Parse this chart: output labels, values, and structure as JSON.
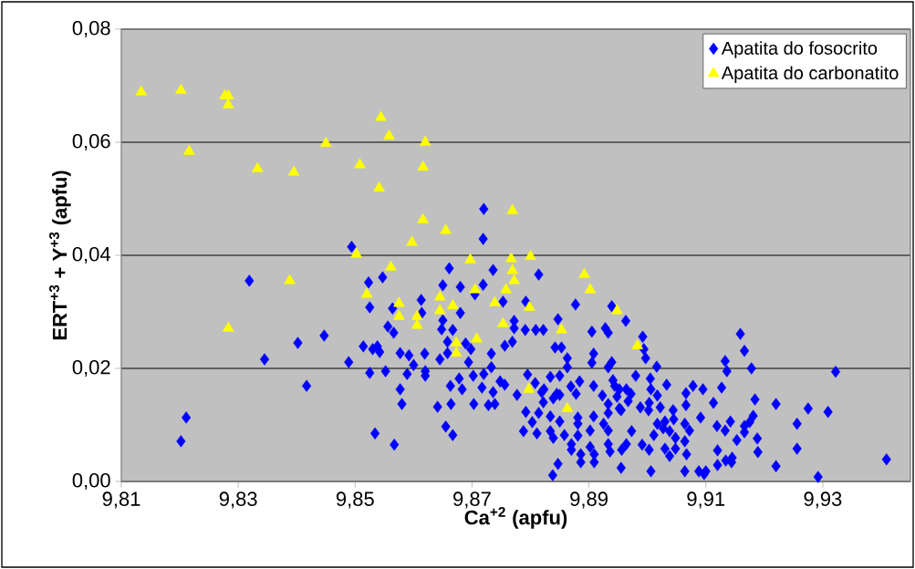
{
  "chart_data": {
    "type": "scatter",
    "xlabel": "Ca$^{+2}$ (apfu)",
    "ylabel": "ERT$^{+3}$ + Y$^{+3}$ (apfu)",
    "xlim": [
      9.81,
      9.945
    ],
    "ylim": [
      0,
      0.08
    ],
    "xticks": [
      {
        "value": 9.81,
        "label": "9,81"
      },
      {
        "value": 9.83,
        "label": "9,83"
      },
      {
        "value": 9.85,
        "label": "9,85"
      },
      {
        "value": 9.87,
        "label": "9,87"
      },
      {
        "value": 9.89,
        "label": "9,89"
      },
      {
        "value": 9.91,
        "label": "9,91"
      },
      {
        "value": 9.93,
        "label": "9,93"
      }
    ],
    "yticks": [
      {
        "value": 0,
        "label": "0,00"
      },
      {
        "value": 0.02,
        "label": "0,02"
      },
      {
        "value": 0.04,
        "label": "0,04"
      },
      {
        "value": 0.06,
        "label": "0,06"
      },
      {
        "value": 0.08,
        "label": "0,08"
      }
    ],
    "grid": "y",
    "legend": "top right",
    "series": [
      {
        "name": "Apatita do fosocrito",
        "color": "#0000ff",
        "marker": "diamond",
        "x": [
          9.8494,
          9.872,
          9.8719,
          9.8319,
          9.8523,
          9.8547,
          9.8525,
          9.8564,
          9.8556,
          9.8447,
          9.8402,
          9.8514,
          9.8538,
          9.853,
          9.8542,
          9.8345,
          9.8489,
          9.8525,
          9.8552,
          9.8417,
          9.8211,
          9.8202,
          9.8534,
          9.8567,
          9.8566,
          9.8661,
          9.8736,
          9.8814,
          9.865,
          9.868,
          9.8719,
          9.8705,
          9.8613,
          9.8753,
          9.8792,
          9.8877,
          9.8939,
          9.8614,
          9.868,
          9.8963,
          9.8772,
          9.8847,
          9.865,
          9.8648,
          9.8667,
          9.8772,
          9.8791,
          9.8809,
          9.8822,
          9.8905,
          9.8928,
          9.8933,
          9.8992,
          9.8658,
          9.8689,
          9.8769,
          9.8756,
          9.8842,
          9.8853,
          9.8698,
          9.8577,
          9.8619,
          9.8658,
          9.8733,
          9.8994,
          9.8592,
          9.8645,
          9.8908,
          9.8863,
          9.8997,
          9.86,
          9.8694,
          9.8733,
          9.8863,
          9.8905,
          9.8939,
          9.9016,
          9.8933,
          9.8589,
          9.862,
          9.862,
          9.872,
          9.8702,
          9.8795,
          9.8834,
          9.885,
          9.898,
          9.9005,
          9.8678,
          9.8663,
          9.8683,
          9.8748,
          9.8756,
          9.8808,
          9.8823,
          9.8884,
          9.8908,
          9.8869,
          9.8941,
          9.8944,
          9.9033,
          9.8577,
          9.8717,
          9.8736,
          9.8777,
          9.8819,
          9.8845,
          9.8878,
          9.8923,
          9.8952,
          9.8964,
          9.8948,
          9.8972,
          9.9006,
          9.9017,
          9.858,
          9.8641,
          9.8664,
          9.8703,
          9.8728,
          9.8739,
          9.8822,
          9.8839,
          9.885,
          9.8933,
          9.8952,
          9.8967,
          9.8988,
          9.9003,
          9.9022,
          9.8792,
          9.8814,
          9.8834,
          9.8881,
          9.8908,
          9.8933,
          9.8955,
          9.9002,
          9.8803,
          9.885,
          9.8881,
          9.8925,
          9.9017,
          9.903,
          9.8655,
          9.8667,
          9.8788,
          9.8811,
          9.8834,
          9.8858,
          9.8881,
          9.8902,
          9.8933,
          9.8973,
          9.9011,
          9.9027,
          9.8839,
          9.887,
          9.8902,
          9.8933,
          9.8964,
          9.8991,
          9.9003,
          9.903,
          9.887,
          9.8886,
          9.8909,
          9.8936,
          9.8956,
          9.8886,
          9.8909,
          9.8847,
          9.8955,
          9.9006,
          9.8838,
          9.9159,
          9.9166,
          9.9133,
          9.9136,
          9.9178,
          9.9322,
          9.9078,
          9.9066,
          9.9095,
          9.9127,
          9.9184,
          9.922,
          9.9275,
          9.9309,
          9.9113,
          9.9066,
          9.9044,
          9.9091,
          9.9045,
          9.9181,
          9.9142,
          9.9119,
          9.9133,
          9.9064,
          9.9072,
          9.9166,
          9.9175,
          9.9256,
          9.9038,
          9.9048,
          9.9064,
          9.9166,
          9.9153,
          9.9188,
          9.9048,
          9.912,
          9.9189,
          9.9256,
          9.9038,
          9.9067,
          9.912,
          9.9134,
          9.9145,
          9.9144,
          9.922,
          9.9409,
          9.9064,
          9.9088,
          9.91,
          9.9097,
          9.9292
        ],
        "values": [
          0.0415,
          0.0482,
          0.0429,
          0.0355,
          0.0352,
          0.0361,
          0.0308,
          0.0306,
          0.0274,
          0.0258,
          0.0245,
          0.0239,
          0.0239,
          0.0234,
          0.0229,
          0.0216,
          0.0211,
          0.0192,
          0.0195,
          0.0169,
          0.0113,
          0.0071,
          0.0085,
          0.0065,
          0.0263,
          0.0377,
          0.0374,
          0.0366,
          0.0347,
          0.0344,
          0.0348,
          0.0331,
          0.0321,
          0.0318,
          0.0318,
          0.0313,
          0.031,
          0.0298,
          0.0298,
          0.0284,
          0.0284,
          0.0287,
          0.0285,
          0.0269,
          0.0268,
          0.0271,
          0.0268,
          0.0268,
          0.0268,
          0.0265,
          0.0271,
          0.0263,
          0.0256,
          0.0247,
          0.0244,
          0.0247,
          0.024,
          0.0237,
          0.0237,
          0.0234,
          0.0227,
          0.0226,
          0.0227,
          0.0226,
          0.0234,
          0.0223,
          0.0216,
          0.0226,
          0.0218,
          0.0218,
          0.0206,
          0.0211,
          0.0202,
          0.0202,
          0.021,
          0.0211,
          0.0203,
          0.0202,
          0.019,
          0.0195,
          0.0187,
          0.019,
          0.0187,
          0.0189,
          0.0185,
          0.0187,
          0.0187,
          0.0182,
          0.0182,
          0.0169,
          0.0163,
          0.0177,
          0.0171,
          0.0174,
          0.0163,
          0.0177,
          0.0169,
          0.0168,
          0.0179,
          0.0169,
          0.0171,
          0.0163,
          0.0166,
          0.0158,
          0.0153,
          0.0158,
          0.0155,
          0.0155,
          0.0152,
          0.0163,
          0.0163,
          0.015,
          0.0155,
          0.0163,
          0.0152,
          0.0137,
          0.0132,
          0.0137,
          0.0137,
          0.0135,
          0.0137,
          0.014,
          0.0147,
          0.0153,
          0.0137,
          0.0129,
          0.0142,
          0.0131,
          0.0139,
          0.0131,
          0.0123,
          0.0121,
          0.0115,
          0.0113,
          0.0115,
          0.0121,
          0.0126,
          0.0126,
          0.0105,
          0.0106,
          0.0102,
          0.0102,
          0.0102,
          0.0106,
          0.0097,
          0.0082,
          0.0089,
          0.0085,
          0.0089,
          0.0082,
          0.0081,
          0.009,
          0.009,
          0.0089,
          0.0082,
          0.0094,
          0.0077,
          0.0066,
          0.0061,
          0.0066,
          0.0066,
          0.0065,
          0.0056,
          0.0058,
          0.0056,
          0.0048,
          0.0048,
          0.0053,
          0.0056,
          0.0034,
          0.0034,
          0.0031,
          0.0024,
          0.0018,
          0.0011,
          0.0261,
          0.0231,
          0.0213,
          0.0195,
          0.02,
          0.0194,
          0.0169,
          0.0156,
          0.0163,
          0.0166,
          0.0145,
          0.0137,
          0.0129,
          0.0123,
          0.0139,
          0.0135,
          0.0126,
          0.0113,
          0.011,
          0.0116,
          0.0106,
          0.0098,
          0.009,
          0.0102,
          0.009,
          0.0098,
          0.0105,
          0.0102,
          0.0089,
          0.0077,
          0.0071,
          0.0087,
          0.0073,
          0.0076,
          0.0058,
          0.0055,
          0.0052,
          0.0058,
          0.0045,
          0.0048,
          0.0029,
          0.0037,
          0.0042,
          0.0034,
          0.0027,
          0.0039,
          0.0018,
          0.0018,
          0.0018,
          0.0013,
          0.0008
        ]
      },
      {
        "name": "Apatita do carbonatito",
        "color": "#ffff00",
        "marker": "triangle",
        "x": [
          9.8134,
          9.8202,
          9.8277,
          9.8283,
          9.8283,
          9.8544,
          9.8558,
          9.845,
          9.8216,
          9.8508,
          9.8333,
          9.8395,
          9.8541,
          9.8502,
          9.862,
          9.8616,
          9.8616,
          9.8655,
          9.8597,
          9.8769,
          9.8283,
          9.8388,
          9.852,
          9.8561,
          9.8697,
          9.8767,
          9.88,
          9.8769,
          9.8772,
          9.8705,
          9.8758,
          9.8645,
          9.8739,
          9.8667,
          9.8798,
          9.8575,
          9.8575,
          9.8606,
          9.8606,
          9.8645,
          9.8753,
          9.8853,
          9.8892,
          9.8902,
          9.8948,
          9.8673,
          9.8673,
          9.8708,
          9.8983,
          9.8797,
          9.8863
        ],
        "values": [
          0.0689,
          0.0692,
          0.0682,
          0.0682,
          0.0666,
          0.0644,
          0.0611,
          0.0598,
          0.0584,
          0.056,
          0.0553,
          0.0547,
          0.0519,
          0.0402,
          0.06,
          0.0556,
          0.0463,
          0.0444,
          0.0423,
          0.0479,
          0.0271,
          0.0355,
          0.0331,
          0.0379,
          0.0392,
          0.0394,
          0.0398,
          0.0373,
          0.0355,
          0.0339,
          0.0339,
          0.0326,
          0.0316,
          0.0311,
          0.0308,
          0.0315,
          0.0292,
          0.0292,
          0.0276,
          0.0302,
          0.0279,
          0.0268,
          0.0366,
          0.0339,
          0.0302,
          0.0245,
          0.0227,
          0.0252,
          0.024,
          0.0163,
          0.0129
        ]
      }
    ]
  }
}
